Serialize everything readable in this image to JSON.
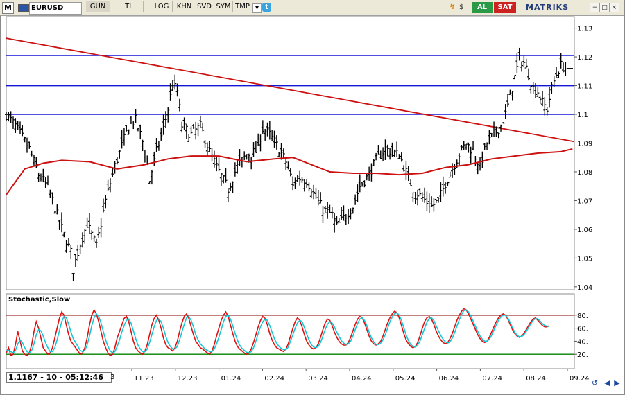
{
  "toolbar": {
    "logo": "M",
    "symbol": "EURUSD",
    "buttons": [
      "GUN",
      "TL",
      "LOG",
      "KHN",
      "SVD",
      "SYM",
      "TMP"
    ],
    "pressed": "GUN",
    "buy_label": "AL",
    "sell_label": "SAT",
    "brand": "MATRIKS",
    "win_minimize": "−",
    "win_restore": "□",
    "win_close": "×",
    "twitter": "t"
  },
  "colors": {
    "price": "#000000",
    "trendline": "#cc1111",
    "support_lines": "#1515d8",
    "moving_average": "#cc1111",
    "stoch_k": "#e01010",
    "stoch_d": "#10c8d8",
    "stoch_upper": "#8b0000",
    "stoch_lower": "#008000",
    "buy": "#2a9a46",
    "sell": "#cc2222"
  },
  "status": {
    "readout": "1.1167 - 10 - 05:12:46",
    "x_cut_label": "3"
  },
  "icons": [
    "refresh-icon",
    "scroll-left-icon",
    "scroll-right-icon"
  ],
  "chart_data": [
    {
      "type": "candlestick",
      "symbol": "EURUSD",
      "timeframe": "daily",
      "ylim": [
        1.039,
        1.134
      ],
      "y_ticks": [
        1.04,
        1.05,
        1.06,
        1.07,
        1.08,
        1.09,
        1.1,
        1.11,
        1.12,
        1.13
      ],
      "x_ticks": [
        "11.23",
        "12.23",
        "01.24",
        "02.24",
        "03.24",
        "04.24",
        "05.24",
        "06.24",
        "07.24",
        "08.24",
        "09.24"
      ],
      "grid": false,
      "horizontal_levels": [
        1.1,
        1.11,
        1.1205
      ],
      "trendline": {
        "from": 1.1265,
        "to": 1.0905
      },
      "close_path": [
        [
          0,
          1.1
        ],
        [
          4,
          1.096
        ],
        [
          10,
          1.088
        ],
        [
          14,
          1.079
        ],
        [
          18,
          1.075
        ],
        [
          22,
          1.065
        ],
        [
          25,
          1.058
        ],
        [
          28,
          1.052
        ],
        [
          29,
          1.046
        ],
        [
          32,
          1.055
        ],
        [
          35,
          1.062
        ],
        [
          39,
          1.054
        ],
        [
          43,
          1.07
        ],
        [
          47,
          1.082
        ],
        [
          50,
          1.089
        ],
        [
          53,
          1.096
        ],
        [
          56,
          1.098
        ],
        [
          60,
          1.088
        ],
        [
          62,
          1.077
        ],
        [
          65,
          1.087
        ],
        [
          68,
          1.095
        ],
        [
          70,
          1.102
        ],
        [
          72,
          1.1105
        ],
        [
          74,
          1.108
        ],
        [
          76,
          1.096
        ],
        [
          80,
          1.093
        ],
        [
          84,
          1.096
        ],
        [
          88,
          1.087
        ],
        [
          92,
          1.08
        ],
        [
          96,
          1.074
        ],
        [
          100,
          1.082
        ],
        [
          104,
          1.086
        ],
        [
          108,
          1.087
        ],
        [
          111,
          1.095
        ],
        [
          114,
          1.093
        ],
        [
          118,
          1.088
        ],
        [
          122,
          1.082
        ],
        [
          124,
          1.075
        ],
        [
          126,
          1.078
        ],
        [
          130,
          1.077
        ],
        [
          134,
          1.071
        ],
        [
          137,
          1.067
        ],
        [
          141,
          1.065
        ],
        [
          143,
          1.061
        ],
        [
          146,
          1.064
        ],
        [
          150,
          1.068
        ],
        [
          153,
          1.075
        ],
        [
          157,
          1.079
        ],
        [
          160,
          1.084
        ],
        [
          164,
          1.088
        ],
        [
          167,
          1.087
        ],
        [
          170,
          1.086
        ],
        [
          173,
          1.08
        ],
        [
          176,
          1.074
        ],
        [
          180,
          1.071
        ],
        [
          184,
          1.068
        ],
        [
          187,
          1.07
        ],
        [
          190,
          1.076
        ],
        [
          193,
          1.081
        ],
        [
          196,
          1.086
        ],
        [
          199,
          1.09
        ],
        [
          202,
          1.087
        ],
        [
          205,
          1.082
        ],
        [
          208,
          1.09
        ],
        [
          211,
          1.093
        ],
        [
          214,
          1.096
        ],
        [
          216,
          1.1
        ],
        [
          218,
          1.106
        ],
        [
          220,
          1.113
        ],
        [
          222,
          1.119
        ],
        [
          224,
          1.118
        ],
        [
          226,
          1.114
        ],
        [
          228,
          1.109
        ],
        [
          230,
          1.108
        ],
        [
          232,
          1.104
        ],
        [
          234,
          1.102
        ],
        [
          236,
          1.109
        ],
        [
          238,
          1.114
        ],
        [
          240,
          1.117
        ],
        [
          242,
          1.116
        ]
      ],
      "moving_average_path": [
        [
          0,
          1.072
        ],
        [
          8,
          1.081
        ],
        [
          16,
          1.083
        ],
        [
          24,
          1.084
        ],
        [
          36,
          1.0835
        ],
        [
          48,
          1.081
        ],
        [
          60,
          1.0825
        ],
        [
          70,
          1.0845
        ],
        [
          80,
          1.0855
        ],
        [
          92,
          1.0855
        ],
        [
          104,
          1.0835
        ],
        [
          116,
          1.0845
        ],
        [
          124,
          1.085
        ],
        [
          132,
          1.0825
        ],
        [
          140,
          1.08
        ],
        [
          150,
          1.0795
        ],
        [
          160,
          1.0795
        ],
        [
          170,
          1.079
        ],
        [
          180,
          1.0795
        ],
        [
          190,
          1.0815
        ],
        [
          200,
          1.0825
        ],
        [
          210,
          1.0845
        ],
        [
          220,
          1.0855
        ],
        [
          230,
          1.0865
        ],
        [
          240,
          1.087
        ],
        [
          245,
          1.088
        ]
      ]
    },
    {
      "type": "line",
      "title": "Stochastic,Slow",
      "ylim": [
        0,
        100
      ],
      "y_ticks": [
        20,
        40,
        60,
        80
      ],
      "levels": [
        20,
        80
      ],
      "series": [
        {
          "values": [
            22,
            30,
            18,
            20,
            35,
            55,
            40,
            25,
            20,
            18,
            22,
            35,
            55,
            70,
            60,
            45,
            30,
            25,
            20,
            22,
            30,
            45,
            60,
            75,
            85,
            80,
            65,
            50,
            40,
            35,
            30,
            25,
            20,
            22,
            30,
            45,
            65,
            80,
            88,
            82,
            70,
            55,
            40,
            30,
            22,
            18,
            20,
            30,
            45,
            55,
            65,
            75,
            78,
            70,
            55,
            40,
            30,
            25,
            22,
            20,
            25,
            35,
            50,
            65,
            75,
            80,
            72,
            60,
            45,
            35,
            30,
            28,
            25,
            30,
            40,
            55,
            68,
            78,
            82,
            75,
            62,
            50,
            40,
            35,
            30,
            28,
            25,
            22,
            20,
            25,
            35,
            48,
            60,
            72,
            80,
            85,
            78,
            65,
            52,
            40,
            32,
            28,
            25,
            22,
            20,
            22,
            28,
            38,
            50,
            62,
            72,
            78,
            75,
            65,
            52,
            42,
            35,
            30,
            28,
            26,
            24,
            28,
            36,
            48,
            60,
            70,
            76,
            72,
            62,
            50,
            40,
            34,
            30,
            28,
            30,
            36,
            46,
            58,
            68,
            74,
            72,
            64,
            54,
            46,
            40,
            36,
            34,
            34,
            38,
            46,
            56,
            66,
            74,
            78,
            76,
            68,
            58,
            48,
            40,
            36,
            34,
            36,
            40,
            48,
            58,
            68,
            76,
            82,
            86,
            84,
            76,
            64,
            52,
            42,
            36,
            32,
            30,
            32,
            38,
            48,
            60,
            70,
            76,
            78,
            74,
            66,
            56,
            48,
            42,
            38,
            36,
            38,
            44,
            52,
            62,
            72,
            80,
            86,
            90,
            88,
            82,
            74,
            66,
            58,
            50,
            44,
            40,
            38,
            40,
            46,
            54,
            62,
            70,
            76,
            80,
            82,
            80,
            74,
            66,
            58,
            52,
            48,
            46,
            48,
            52,
            58,
            64,
            70,
            74,
            76,
            72,
            68,
            64,
            62,
            62,
            64
          ]
        },
        {
          "values": [
            25,
            26,
            24,
            22,
            26,
            36,
            42,
            38,
            30,
            24,
            22,
            26,
            36,
            50,
            58,
            56,
            48,
            38,
            30,
            24,
            24,
            30,
            42,
            56,
            70,
            78,
            76,
            66,
            54,
            44,
            38,
            32,
            26,
            24,
            26,
            34,
            48,
            64,
            76,
            82,
            78,
            68,
            55,
            42,
            32,
            25,
            22,
            24,
            32,
            42,
            54,
            64,
            72,
            74,
            68,
            56,
            44,
            34,
            28,
            24,
            24,
            28,
            38,
            50,
            62,
            72,
            74,
            70,
            60,
            48,
            38,
            32,
            28,
            28,
            32,
            42,
            54,
            66,
            76,
            78,
            72,
            62,
            50,
            42,
            36,
            32,
            28,
            26,
            24,
            24,
            28,
            36,
            46,
            58,
            70,
            78,
            80,
            74,
            64,
            52,
            42,
            34,
            29,
            26,
            23,
            22,
            24,
            30,
            40,
            52,
            62,
            70,
            74,
            72,
            64,
            54,
            44,
            37,
            32,
            29,
            27,
            27,
            31,
            40,
            50,
            60,
            68,
            72,
            70,
            61,
            51,
            42,
            35,
            31,
            30,
            32,
            38,
            48,
            58,
            66,
            70,
            68,
            62,
            54,
            47,
            41,
            37,
            35,
            36,
            40,
            48,
            58,
            67,
            74,
            76,
            72,
            64,
            54,
            45,
            39,
            35,
            35,
            37,
            42,
            50,
            60,
            70,
            77,
            82,
            84,
            80,
            72,
            61,
            50,
            41,
            35,
            32,
            31,
            34,
            40,
            50,
            60,
            69,
            75,
            76,
            72,
            64,
            56,
            49,
            43,
            39,
            37,
            39,
            45,
            53,
            63,
            73,
            81,
            87,
            88,
            85,
            79,
            71,
            63,
            55,
            48,
            43,
            40,
            40,
            43,
            49,
            57,
            65,
            72,
            77,
            80,
            80,
            76,
            69,
            61,
            54,
            49,
            47,
            47,
            50,
            55,
            61,
            67,
            72,
            75,
            74,
            71,
            67,
            64,
            63,
            63
          ]
        }
      ]
    }
  ]
}
